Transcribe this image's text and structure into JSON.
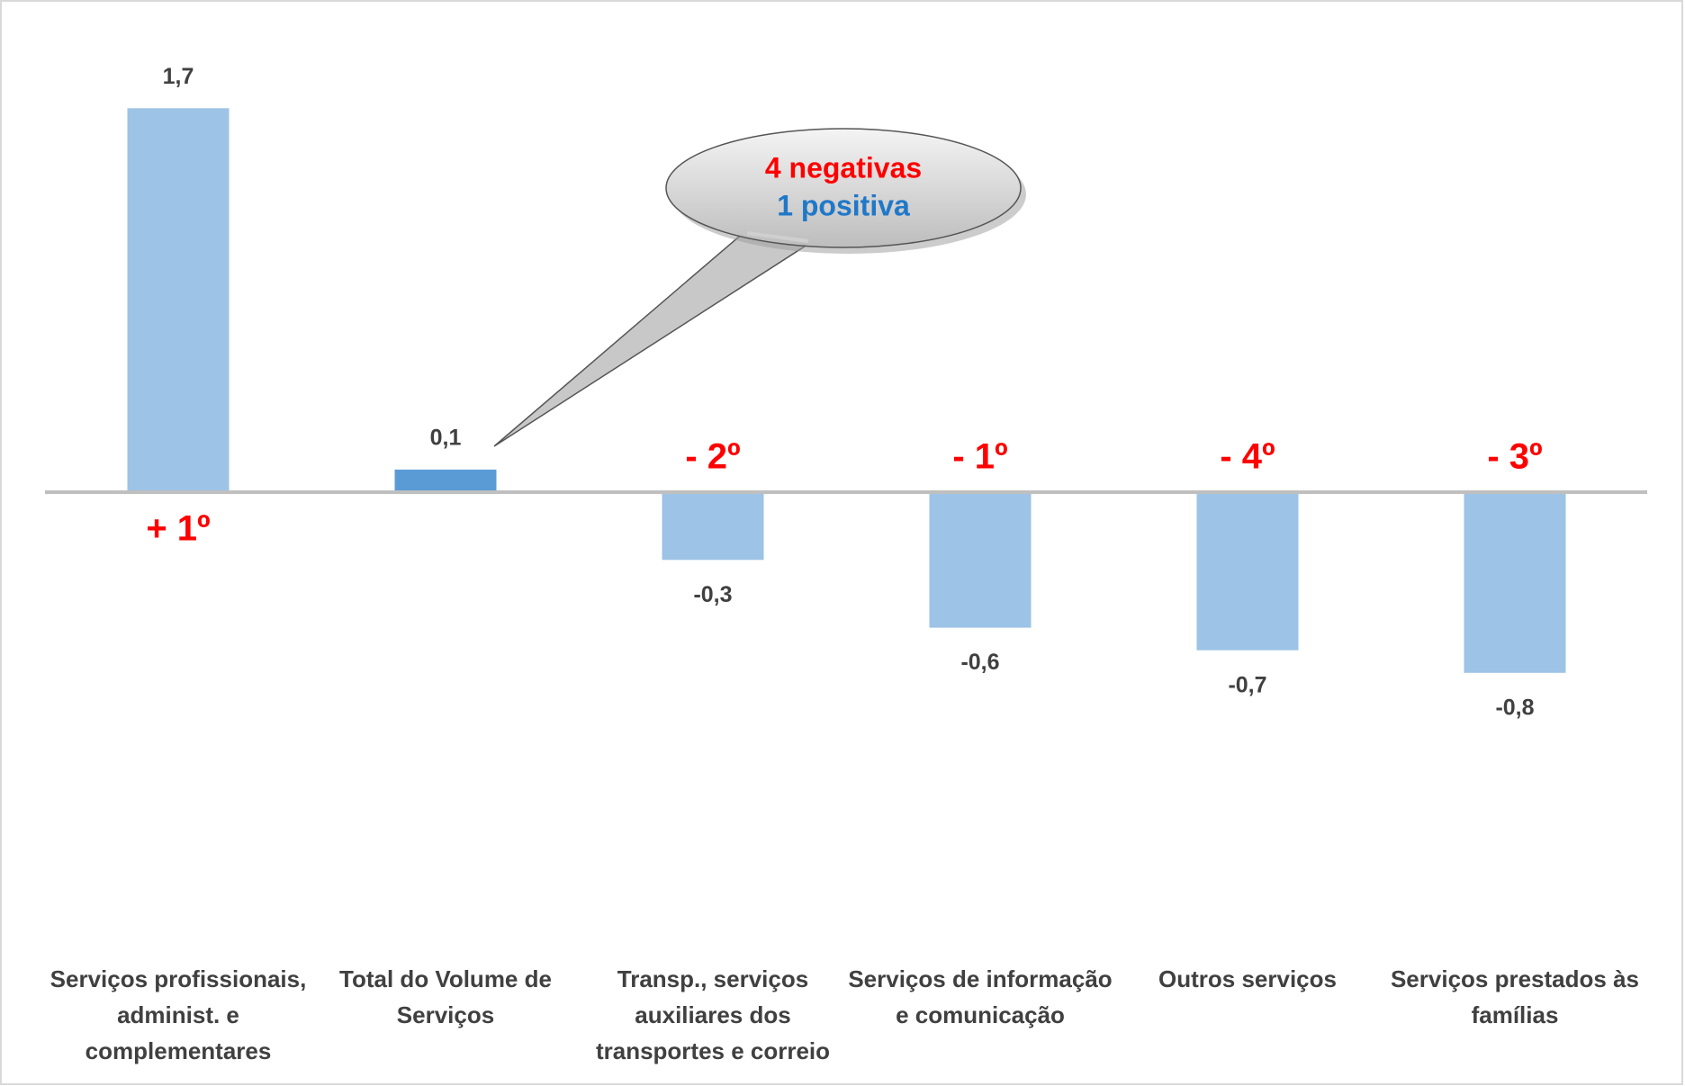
{
  "chart_data": {
    "type": "bar",
    "categories": [
      "Serviços profissionais, administ. e complementares",
      "Total do Volume de Serviços",
      "Transp., serviços auxiliares dos transportes e correio",
      "Serviços de informação e comunicação",
      "Outros serviços",
      "Serviços prestados às famílias"
    ],
    "values": [
      1.7,
      0.1,
      -0.3,
      -0.6,
      -0.7,
      -0.8
    ],
    "value_labels": [
      "1,7",
      "0,1",
      "-0,3",
      "-0,6",
      "-0,7",
      "-0,8"
    ],
    "colors": [
      "#9dc3e6",
      "#5b9bd5",
      "#9dc3e6",
      "#9dc3e6",
      "#9dc3e6",
      "#9dc3e6"
    ],
    "rank_labels": [
      "+ 1º",
      null,
      "- 2º",
      "- 1º",
      "- 4º",
      "- 3º"
    ],
    "callout": {
      "line1": "4 negativas",
      "line2": "1 positiva"
    }
  }
}
